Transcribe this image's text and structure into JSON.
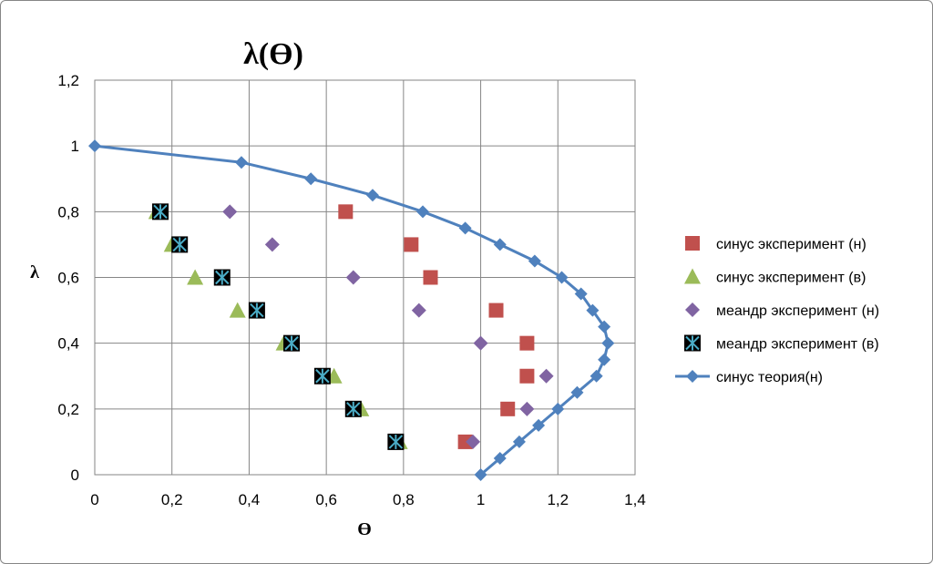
{
  "chart_data": {
    "type": "scatter",
    "title": "λ(ϴ)",
    "xlabel": "ϴ",
    "ylabel": "λ",
    "xlim": [
      0,
      1.4
    ],
    "ylim": [
      0,
      1.2
    ],
    "xticks": [
      "0",
      "0,2",
      "0,4",
      "0,6",
      "0,8",
      "1",
      "1,2",
      "1,4"
    ],
    "yticks": [
      "0",
      "0,2",
      "0,4",
      "0,6",
      "0,8",
      "1",
      "1,2"
    ],
    "grid": true,
    "legend_position": "right",
    "series": [
      {
        "name": "синус эксперимент (н)",
        "marker": "square",
        "color": "#C0504D",
        "points": [
          [
            0.65,
            0.8
          ],
          [
            0.82,
            0.7
          ],
          [
            0.87,
            0.6
          ],
          [
            1.04,
            0.5
          ],
          [
            1.12,
            0.4
          ],
          [
            1.12,
            0.3
          ],
          [
            1.07,
            0.2
          ],
          [
            0.96,
            0.1
          ]
        ]
      },
      {
        "name": "синус эксперимент (в)",
        "marker": "triangle",
        "color": "#9BBB59",
        "points": [
          [
            0.16,
            0.8
          ],
          [
            0.2,
            0.7
          ],
          [
            0.26,
            0.6
          ],
          [
            0.37,
            0.5
          ],
          [
            0.49,
            0.4
          ],
          [
            0.62,
            0.3
          ],
          [
            0.69,
            0.2
          ],
          [
            0.79,
            0.1
          ]
        ]
      },
      {
        "name": "меандр эксперимент (н)",
        "marker": "diamond",
        "color": "#8064A2",
        "points": [
          [
            0.35,
            0.8
          ],
          [
            0.46,
            0.7
          ],
          [
            0.67,
            0.6
          ],
          [
            0.84,
            0.5
          ],
          [
            1.0,
            0.4
          ],
          [
            1.17,
            0.3
          ],
          [
            1.12,
            0.2
          ],
          [
            0.98,
            0.1
          ]
        ]
      },
      {
        "name": "меандр эксперимент (в)",
        "marker": "star-square",
        "color": "#000000",
        "accent": "#4BACC6",
        "points": [
          [
            0.17,
            0.8
          ],
          [
            0.22,
            0.7
          ],
          [
            0.33,
            0.6
          ],
          [
            0.42,
            0.5
          ],
          [
            0.51,
            0.4
          ],
          [
            0.59,
            0.3
          ],
          [
            0.67,
            0.2
          ],
          [
            0.78,
            0.1
          ]
        ]
      },
      {
        "name": "синус теория(н)",
        "marker": "diamond-line",
        "color": "#4F81BD",
        "points": [
          [
            0,
            1.0
          ],
          [
            0.38,
            0.95
          ],
          [
            0.56,
            0.9
          ],
          [
            0.72,
            0.85
          ],
          [
            0.85,
            0.8
          ],
          [
            0.96,
            0.75
          ],
          [
            1.05,
            0.7
          ],
          [
            1.14,
            0.65
          ],
          [
            1.21,
            0.6
          ],
          [
            1.26,
            0.55
          ],
          [
            1.29,
            0.5
          ],
          [
            1.32,
            0.45
          ],
          [
            1.33,
            0.4
          ],
          [
            1.32,
            0.35
          ],
          [
            1.3,
            0.3
          ],
          [
            1.25,
            0.25
          ],
          [
            1.2,
            0.2
          ],
          [
            1.15,
            0.15
          ],
          [
            1.1,
            0.1
          ],
          [
            1.05,
            0.05
          ],
          [
            1.0,
            0.0
          ]
        ]
      }
    ]
  }
}
